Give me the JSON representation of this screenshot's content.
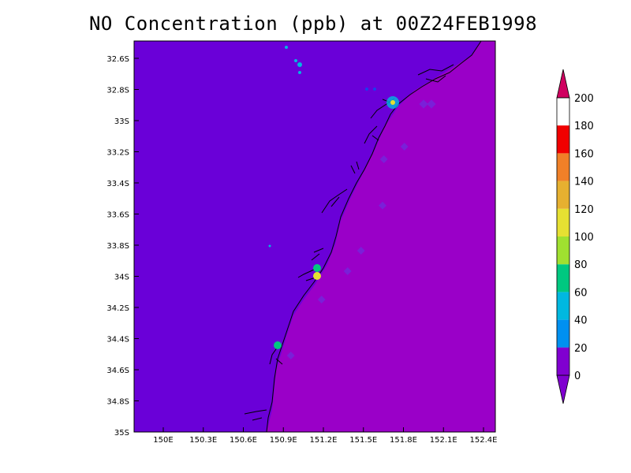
{
  "title": "NO Concentration (ppb) at 00Z24FEB1998",
  "map": {
    "lat_ticks": [
      "32.6S",
      "32.8S",
      "33S",
      "33.2S",
      "33.4S",
      "33.6S",
      "33.8S",
      "34S",
      "34.2S",
      "34.4S",
      "34.6S",
      "34.8S",
      "35S"
    ],
    "lon_ticks": [
      "150E",
      "150.3E",
      "150.6E",
      "150.9E",
      "151.2E",
      "151.5E",
      "151.8E",
      "152.1E",
      "152.4E"
    ],
    "land_color": "#6a00d8",
    "sea_color": "#9a00c8"
  },
  "colorbar": {
    "levels": [
      "0",
      "20",
      "40",
      "60",
      "80",
      "100",
      "120",
      "140",
      "160",
      "180",
      "200"
    ],
    "colors": [
      "#8000d0",
      "#1a3cf0",
      "#0090f0",
      "#00b8e0",
      "#00c880",
      "#a0e030",
      "#e6e032",
      "#e6b030",
      "#f08028",
      "#f00000",
      "#d00060"
    ]
  }
}
